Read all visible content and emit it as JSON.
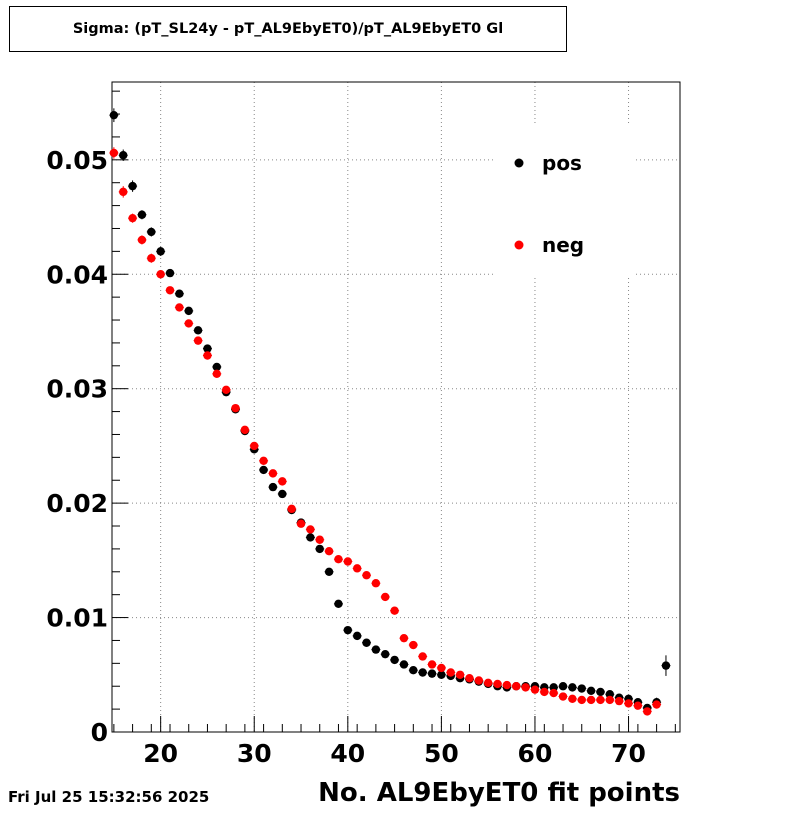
{
  "title": "Sigma: (pT_SL24y - pT_AL9EbyET0)/pT_AL9EbyET0 Gl",
  "timestamp": "Fri Jul 25 15:32:56 2025",
  "colors": {
    "pos": "#000000",
    "neg": "#ff0000",
    "grid": "#888888"
  },
  "chart_data": {
    "type": "scatter",
    "xlabel": "No. AL9EbyET0 fit points",
    "ylabel": "",
    "xlim": [
      14.8,
      75.5
    ],
    "ylim": [
      0,
      0.0568
    ],
    "xticks": [
      20,
      30,
      40,
      50,
      60,
      70
    ],
    "xtick_labels": [
      "20",
      "30",
      "40",
      "50",
      "60",
      "70"
    ],
    "yticks": [
      0,
      0.01,
      0.02,
      0.03,
      0.04,
      0.05
    ],
    "ytick_labels": [
      "0",
      "0.01",
      "0.02",
      "0.03",
      "0.04",
      "0.05"
    ],
    "grid": true,
    "legend_position": "top-right",
    "series": [
      {
        "name": "pos",
        "color": "#000000",
        "x": [
          15,
          16,
          17,
          18,
          19,
          20,
          21,
          22,
          23,
          24,
          25,
          26,
          27,
          28,
          29,
          30,
          31,
          32,
          33,
          34,
          35,
          36,
          37,
          38,
          39,
          40,
          41,
          42,
          43,
          44,
          45,
          46,
          47,
          48,
          49,
          50,
          51,
          52,
          53,
          54,
          55,
          56,
          57,
          58,
          59,
          60,
          61,
          62,
          63,
          64,
          65,
          66,
          67,
          68,
          69,
          70,
          71,
          72,
          73,
          74
        ],
        "y": [
          0.0539,
          0.0504,
          0.0477,
          0.0452,
          0.0437,
          0.042,
          0.0401,
          0.0383,
          0.0368,
          0.0351,
          0.0335,
          0.0319,
          0.0297,
          0.0282,
          0.0263,
          0.0247,
          0.0229,
          0.0214,
          0.0208,
          0.0194,
          0.0183,
          0.017,
          0.016,
          0.014,
          0.0112,
          0.0089,
          0.0084,
          0.0078,
          0.0072,
          0.0068,
          0.0063,
          0.0059,
          0.0054,
          0.0052,
          0.0051,
          0.005,
          0.0049,
          0.0047,
          0.0046,
          0.0044,
          0.0042,
          0.004,
          0.0039,
          0.004,
          0.004,
          0.004,
          0.0039,
          0.0039,
          0.004,
          0.0039,
          0.0038,
          0.0036,
          0.0035,
          0.0033,
          0.003,
          0.0029,
          0.0026,
          0.0021,
          0.0026,
          0.0058
        ],
        "yerr": [
          0.0006,
          0.0005,
          0.0005,
          0.0004,
          0.0004,
          0.0004,
          0.0003,
          0.0003,
          0.0003,
          0.0003,
          0.0003,
          0.0003,
          0.0003,
          0.0003,
          0.0002,
          0.0002,
          0.0002,
          0.0002,
          0.0002,
          0.0002,
          0.0002,
          0.0002,
          0.0002,
          0.0002,
          0.0002,
          0.0002,
          0.0001,
          0.0001,
          0.0001,
          0.0001,
          0.0001,
          0.0001,
          0.0001,
          0.0001,
          0.0001,
          0.0001,
          0.0001,
          0.0001,
          0.0001,
          0.0001,
          0.0001,
          0.0001,
          0.0001,
          0.0001,
          0.0001,
          0.0001,
          0.0001,
          0.0001,
          0.0001,
          0.0001,
          0.0001,
          0.0001,
          0.0001,
          0.0001,
          0.0001,
          0.0001,
          0.0001,
          0.0002,
          0.0004,
          0.0009
        ]
      },
      {
        "name": "neg",
        "color": "#ff0000",
        "x": [
          15,
          16,
          17,
          18,
          19,
          20,
          21,
          22,
          23,
          24,
          25,
          26,
          27,
          28,
          29,
          30,
          31,
          32,
          33,
          34,
          35,
          36,
          37,
          38,
          39,
          40,
          41,
          42,
          43,
          44,
          45,
          46,
          47,
          48,
          49,
          50,
          51,
          52,
          53,
          54,
          55,
          56,
          57,
          58,
          59,
          60,
          61,
          62,
          63,
          64,
          65,
          66,
          67,
          68,
          69,
          70,
          71,
          72,
          73
        ],
        "y": [
          0.0506,
          0.0472,
          0.0449,
          0.043,
          0.0414,
          0.04,
          0.0386,
          0.0371,
          0.0357,
          0.0342,
          0.0329,
          0.0313,
          0.0299,
          0.0283,
          0.0264,
          0.025,
          0.0237,
          0.0226,
          0.0219,
          0.0195,
          0.0182,
          0.0177,
          0.0168,
          0.0158,
          0.0151,
          0.0149,
          0.0143,
          0.0137,
          0.013,
          0.0118,
          0.0106,
          0.0082,
          0.0076,
          0.0066,
          0.0059,
          0.0056,
          0.0052,
          0.005,
          0.0047,
          0.0045,
          0.0043,
          0.0042,
          0.0041,
          0.004,
          0.0039,
          0.0037,
          0.0035,
          0.0034,
          0.0031,
          0.0029,
          0.0028,
          0.0028,
          0.0028,
          0.0028,
          0.0027,
          0.0025,
          0.0023,
          0.0018,
          0.0024
        ],
        "yerr": [
          0.0005,
          0.0005,
          0.0004,
          0.0004,
          0.0004,
          0.0003,
          0.0003,
          0.0003,
          0.0003,
          0.0003,
          0.0003,
          0.0003,
          0.0003,
          0.0002,
          0.0002,
          0.0002,
          0.0002,
          0.0002,
          0.0002,
          0.0002,
          0.0002,
          0.0002,
          0.0002,
          0.0002,
          0.0002,
          0.0002,
          0.0002,
          0.0002,
          0.0002,
          0.0002,
          0.0002,
          0.0001,
          0.0001,
          0.0001,
          0.0001,
          0.0001,
          0.0001,
          0.0001,
          0.0001,
          0.0001,
          0.0001,
          0.0001,
          0.0001,
          0.0001,
          0.0001,
          0.0001,
          0.0001,
          0.0001,
          0.0001,
          0.0001,
          0.0001,
          0.0001,
          0.0001,
          0.0001,
          0.0001,
          0.0001,
          0.0001,
          0.0002,
          0.0003
        ]
      }
    ]
  }
}
